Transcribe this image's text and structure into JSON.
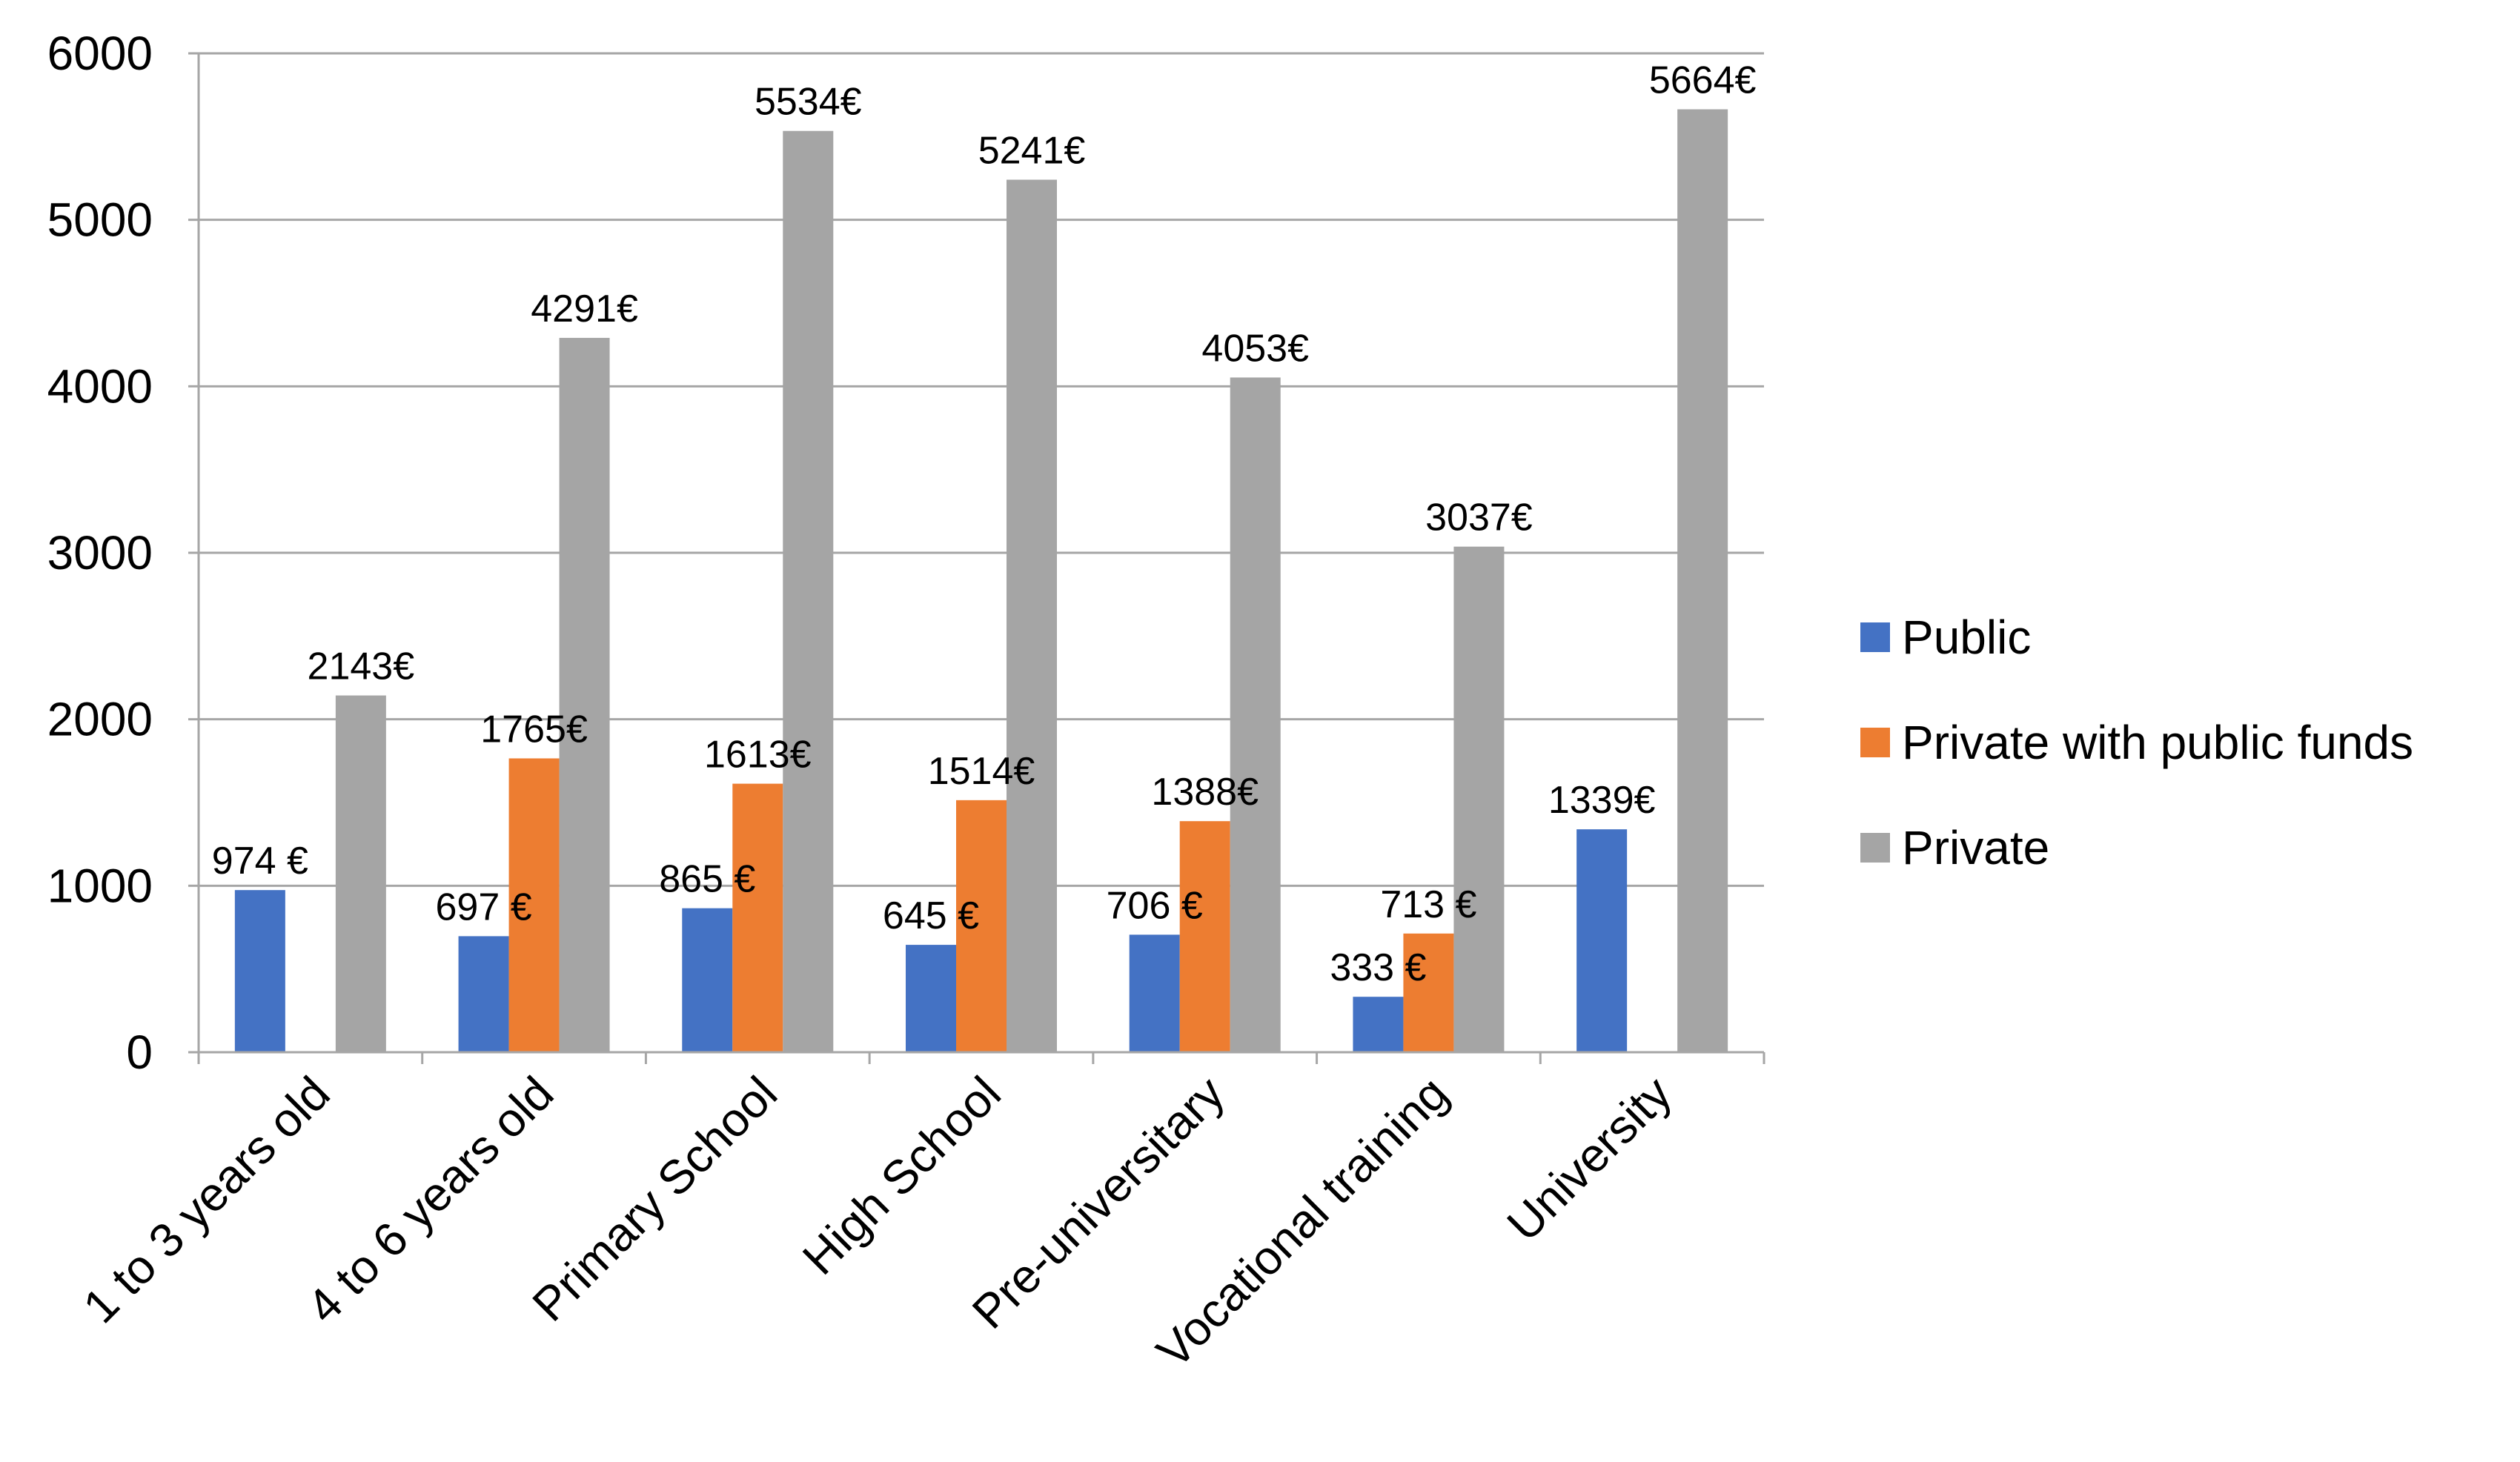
{
  "chart_data": {
    "type": "bar",
    "title": "",
    "xlabel": "",
    "ylabel": "",
    "ylim": [
      0,
      6000
    ],
    "yticks": [
      0,
      1000,
      2000,
      3000,
      4000,
      5000,
      6000
    ],
    "grid": true,
    "legend_position": "right",
    "categories": [
      "1 to 3 years old",
      "4 to 6 years old",
      "Primary School",
      "High School",
      "Pre-universitary",
      "Vocational training",
      "University"
    ],
    "series": [
      {
        "name": "Public",
        "color": "#4472C4",
        "values": [
          974,
          697,
          865,
          645,
          706,
          333,
          1339
        ],
        "labels": [
          "974 €",
          "697 €",
          "865 €",
          "645 €",
          "706 €",
          "333 €",
          "1339€"
        ]
      },
      {
        "name": "Private  with public funds",
        "color": "#ED7D31",
        "values": [
          null,
          1765,
          1613,
          1514,
          1388,
          713,
          null
        ],
        "labels": [
          null,
          "1765€",
          "1613€",
          "1514€",
          "1388€",
          "713 €",
          null
        ]
      },
      {
        "name": "Private",
        "color": "#A5A5A5",
        "values": [
          2143,
          4291,
          5534,
          5241,
          4053,
          3037,
          5664
        ],
        "labels": [
          "2143€",
          "4291€",
          "5534€",
          "5241€",
          "4053€",
          "3037€",
          "5664€"
        ]
      }
    ]
  }
}
